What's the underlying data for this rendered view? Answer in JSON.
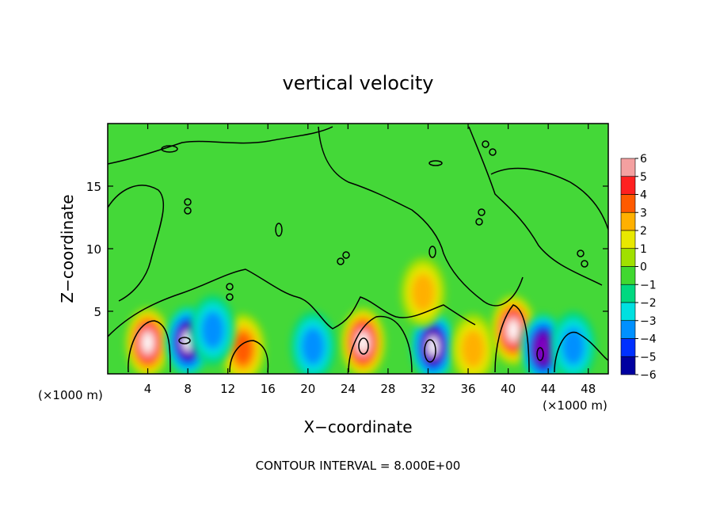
{
  "chart_data": {
    "type": "heatmap",
    "title": "vertical velocity",
    "xlabel": "X−coordinate",
    "ylabel": "Z−coordinate",
    "x_unit_left": "(×1000 m)",
    "x_unit_right": "(×1000 m)",
    "footer": "CONTOUR INTERVAL = 8.000E+00",
    "xlim": [
      0,
      50
    ],
    "ylim": [
      0,
      20
    ],
    "x_ticks": [
      4,
      8,
      12,
      16,
      20,
      24,
      28,
      32,
      36,
      40,
      44,
      48
    ],
    "x_tick_labels": [
      "4",
      "8",
      "12",
      "16",
      "20",
      "24",
      "28",
      "32",
      "36",
      "40",
      "44",
      "48"
    ],
    "y_ticks": [
      5,
      10,
      15
    ],
    "y_tick_labels": [
      "5",
      "10",
      "15"
    ],
    "colorbar": {
      "levels": [
        6,
        5,
        4,
        3,
        2,
        1,
        0,
        -1,
        -2,
        -3,
        -4,
        -5,
        -6
      ],
      "labels": [
        "6",
        "5",
        "4",
        "3",
        "2",
        "1",
        "0",
        "−1",
        "−2",
        "−3",
        "−4",
        "−5",
        "−6"
      ],
      "colors": [
        "#f4a0a0",
        "#ff2020",
        "#ff5a00",
        "#ffb000",
        "#e8e800",
        "#a0e000",
        "#40d830",
        "#00d880",
        "#00e0e0",
        "#0090ff",
        "#0030ff",
        "#0000a0",
        "#8000c0"
      ]
    },
    "background_color": "#44d838",
    "features": [
      {
        "x": 4.0,
        "z": 2.5,
        "value": 6.5
      },
      {
        "x": 8.0,
        "z": 2.6,
        "value": -6.0
      },
      {
        "x": 13.5,
        "z": 2.0,
        "value": 4.0
      },
      {
        "x": 10.5,
        "z": 3.5,
        "value": -3.0
      },
      {
        "x": 25.5,
        "z": 2.5,
        "value": 6.5
      },
      {
        "x": 32.5,
        "z": 2.2,
        "value": -6.5
      },
      {
        "x": 31.5,
        "z": 6.5,
        "value": 3.0
      },
      {
        "x": 36.5,
        "z": 2.0,
        "value": 2.5
      },
      {
        "x": 40.5,
        "z": 3.5,
        "value": 6.5
      },
      {
        "x": 43.5,
        "z": 2.0,
        "value": -5.5
      },
      {
        "x": 20.5,
        "z": 2.2,
        "value": -3.0
      },
      {
        "x": 46.5,
        "z": 2.2,
        "value": -2.5
      }
    ]
  }
}
